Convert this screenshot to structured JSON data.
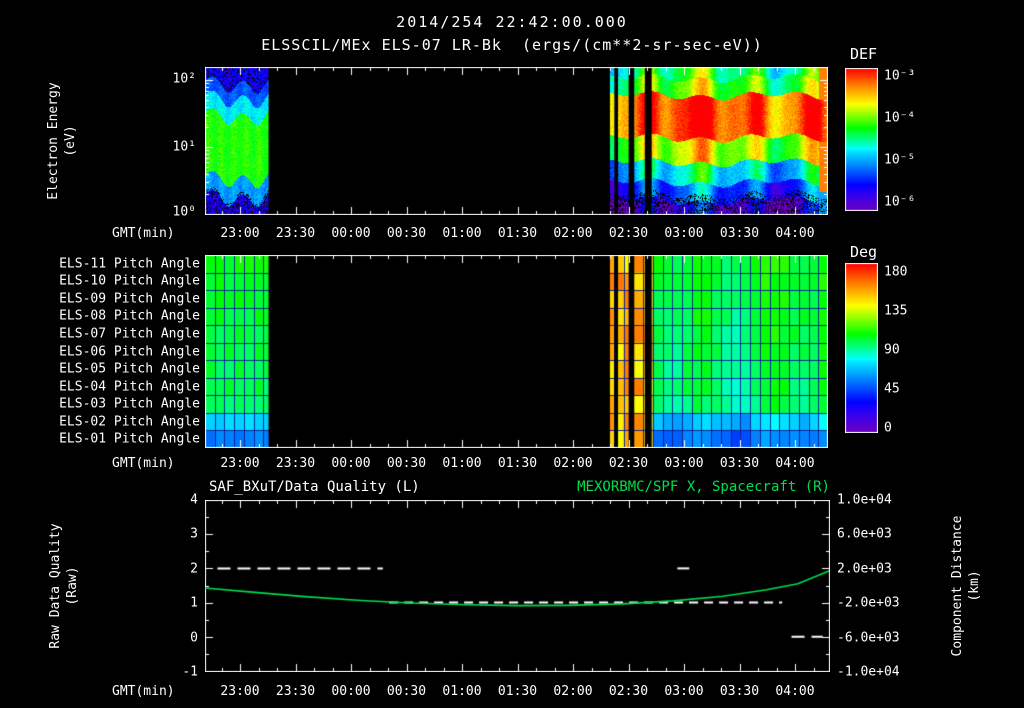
{
  "header": {
    "title": "2014/254 22:42:00.000",
    "subtitle": "ELSSCIL/MEx ELS-07 LR-Bk  (ergs/(cm**2-sr-sec-eV))"
  },
  "xaxis": {
    "label": "GMT(min)",
    "ticks": [
      "23:00",
      "23:30",
      "00:00",
      "00:30",
      "01:00",
      "01:30",
      "02:00",
      "02:30",
      "03:00",
      "03:30",
      "04:00"
    ]
  },
  "panel_energy": {
    "ylabel_line1": "Electron Energy",
    "ylabel_line2": "(eV)",
    "yticks": [
      "10²",
      "10¹",
      "10⁰"
    ],
    "colorbar_title": "DEF",
    "colorbar_ticks": [
      "10⁻³",
      "10⁻⁴",
      "10⁻⁵",
      "10⁻⁶"
    ]
  },
  "panel_pitch": {
    "rows": [
      "ELS-11 Pitch Angle",
      "ELS-10 Pitch Angle",
      "ELS-09 Pitch Angle",
      "ELS-08 Pitch Angle",
      "ELS-07 Pitch Angle",
      "ELS-06 Pitch Angle",
      "ELS-05 Pitch Angle",
      "ELS-04 Pitch Angle",
      "ELS-03 Pitch Angle",
      "ELS-02 Pitch Angle",
      "ELS-01 Pitch Angle"
    ],
    "colorbar_title": "Deg",
    "colorbar_ticks": [
      "180",
      "135",
      "90",
      "45",
      "0"
    ]
  },
  "panel_line": {
    "title_left": "SAF_BXuT/Data Quality (L)",
    "title_right": "MEXORBMC/SPF X, Spacecraft (R)",
    "ylabel_left_line1": "Raw Data Quality",
    "ylabel_left_line2": "(Raw)",
    "yticks_left": [
      "4",
      "3",
      "2",
      "1",
      "0",
      "-1"
    ],
    "ylabel_right_line1": "Component Distance",
    "ylabel_right_line2": "(km)",
    "yticks_right": [
      "1.0e+04",
      "6.0e+03",
      "2.0e+03",
      "-2.0e+03",
      "-6.0e+03",
      "-1.0e+04"
    ]
  },
  "colors": {
    "background": "#000000",
    "text": "#ffffff",
    "accent_green": "#00dd4e"
  },
  "chart_data": [
    {
      "name": "electron_energy_spectrogram",
      "type": "heatmap",
      "xlabel": "GMT(min)",
      "ylabel": "Electron Energy (eV)",
      "y_scale": "log",
      "y_range_ev": [
        1,
        158
      ],
      "value_units": "ergs/(cm**2-sr-sec-eV)",
      "value_range": [
        1e-06,
        0.001
      ],
      "colorbar_title": "DEF",
      "draw_ranges": [
        [
          0.0,
          0.102
        ],
        [
          0.648,
          1.0
        ]
      ],
      "gap_ranges": [
        [
          0.102,
          0.65
        ],
        [
          0.657,
          0.663
        ],
        [
          0.68,
          0.689
        ],
        [
          0.706,
          0.717
        ]
      ],
      "profile_early": [
        {
          "emax": 1.8,
          "v": 0.14
        },
        {
          "emax": 3.5,
          "v": 0.34
        },
        {
          "emax": 30,
          "v": 0.6
        },
        {
          "emax": 55,
          "v": 0.42
        },
        {
          "emax": 90,
          "v": 0.27
        },
        {
          "emax": 158,
          "v": 0.16
        }
      ],
      "profile_late": [
        {
          "emax": 1.6,
          "v": 0.1
        },
        {
          "emax": 3.0,
          "v": 0.26
        },
        {
          "emax": 6.0,
          "v": 0.43
        },
        {
          "emax": 14,
          "v": 0.7
        },
        {
          "emax": 60,
          "v": 0.94
        },
        {
          "emax": 110,
          "v": 0.63
        },
        {
          "emax": 158,
          "v": 0.55
        }
      ]
    },
    {
      "name": "pitch_angle_panels",
      "type": "heatmap",
      "rows": [
        "ELS-11",
        "ELS-10",
        "ELS-09",
        "ELS-08",
        "ELS-07",
        "ELS-06",
        "ELS-05",
        "ELS-04",
        "ELS-03",
        "ELS-02",
        "ELS-01"
      ],
      "row_values_deg": [
        103,
        102,
        101,
        100,
        99,
        98,
        97,
        96,
        94,
        70,
        55
      ],
      "stripe_value_deg": 147,
      "value_range_deg": [
        0,
        180
      ],
      "colorbar_title": "Deg",
      "draw_ranges": [
        [
          0.0,
          0.102
        ],
        [
          0.648,
          1.0
        ]
      ],
      "gap_ranges": [
        [
          0.102,
          0.65
        ],
        [
          0.657,
          0.663
        ],
        [
          0.68,
          0.689
        ],
        [
          0.706,
          0.717
        ]
      ]
    },
    {
      "name": "spacecraft_x_distance",
      "type": "line",
      "axis": "right",
      "units": "km",
      "color": "#00dd4e",
      "y_range": [
        -10000,
        10000
      ],
      "points": [
        [
          0,
          -300
        ],
        [
          0.08,
          -800
        ],
        [
          0.16,
          -1300
        ],
        [
          0.25,
          -1750
        ],
        [
          0.33,
          -2050
        ],
        [
          0.42,
          -2250
        ],
        [
          0.5,
          -2350
        ],
        [
          0.58,
          -2320
        ],
        [
          0.67,
          -2150
        ],
        [
          0.75,
          -1800
        ],
        [
          0.83,
          -1250
        ],
        [
          0.9,
          -500
        ],
        [
          0.95,
          200
        ],
        [
          1.0,
          1700
        ]
      ]
    },
    {
      "name": "raw_data_quality",
      "type": "line",
      "axis": "left",
      "style": "dashed",
      "color": "#ffffff",
      "y_range": [
        -1,
        4
      ],
      "segments": [
        {
          "x0": 0.02,
          "x1": 0.285,
          "q": 2
        },
        {
          "x0": 0.295,
          "x1": 0.925,
          "q": 1
        },
        {
          "x0": 0.757,
          "x1": 0.776,
          "q": 2
        },
        {
          "x0": 0.94,
          "x1": 0.99,
          "q": 0
        }
      ]
    }
  ]
}
